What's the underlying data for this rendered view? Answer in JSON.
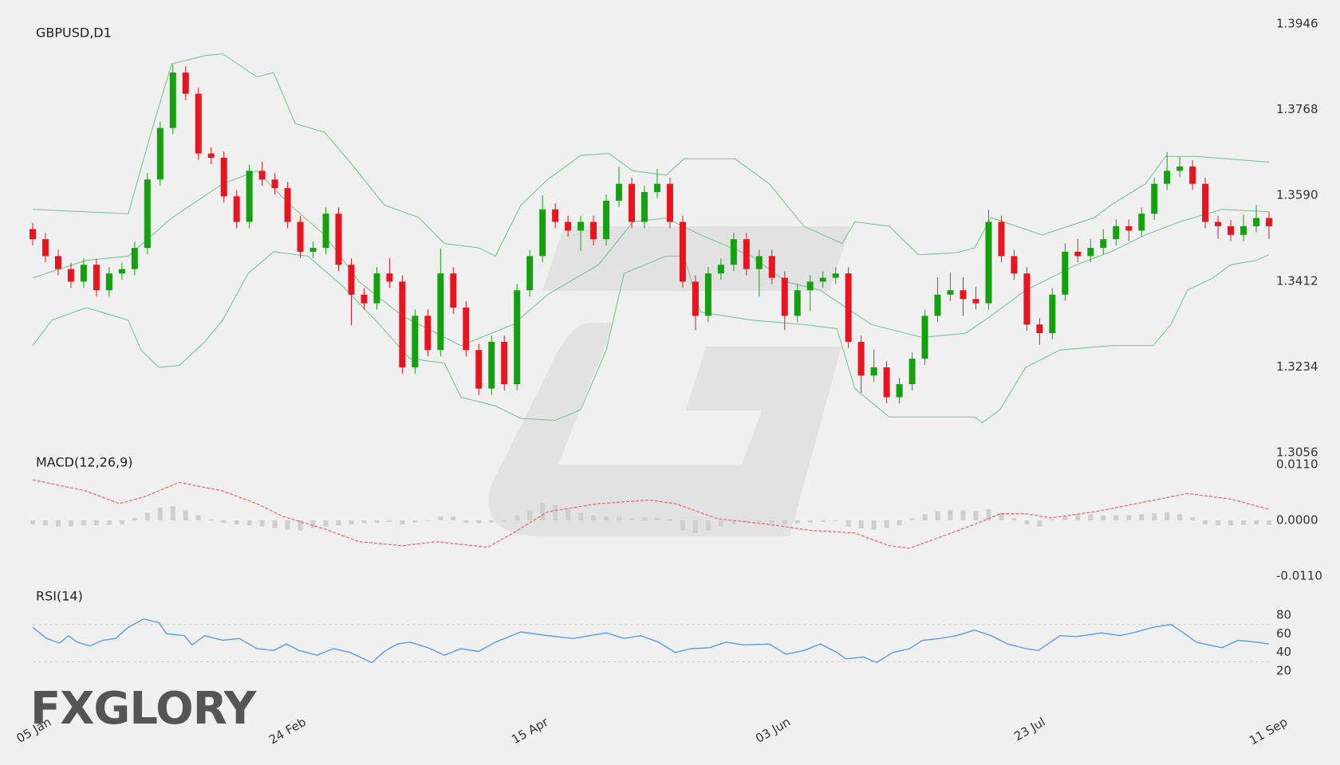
{
  "brand": "FXGLORY",
  "chart_data": [
    {
      "type": "candlestick",
      "title": "GBPUSD,D1",
      "up_color": "#13a10e",
      "down_color": "#e8141e",
      "xlim": [
        0,
        97
      ],
      "xticks": [
        {
          "value": 0,
          "label": "05 Jan"
        },
        {
          "value": 20,
          "label": "24 Feb"
        },
        {
          "value": 39,
          "label": "15 Apr"
        },
        {
          "value": 58,
          "label": "03 Jun"
        },
        {
          "value": 78,
          "label": "23 Jul"
        },
        {
          "value": 97,
          "label": "11 Sep"
        }
      ],
      "ylim": [
        1.3056,
        1.3946
      ],
      "yticks": [
        1.3946,
        1.3768,
        {
          "value": 1.359,
          "label": "1.3590"
        },
        1.3412,
        1.3234,
        1.3056
      ],
      "open": [
        1.352,
        1.3499,
        1.3464,
        1.3437,
        1.3411,
        1.3446,
        1.3393,
        1.3428,
        1.3437,
        1.3481,
        1.3623,
        1.373,
        1.3845,
        1.3801,
        1.3677,
        1.3668,
        1.3588,
        1.3535,
        1.3641,
        1.3623,
        1.3605,
        1.3535,
        1.3473,
        1.3481,
        1.3552,
        1.3446,
        1.3384,
        1.3366,
        1.3428,
        1.3411,
        1.3233,
        1.334,
        1.3269,
        1.3428,
        1.3357,
        1.3269,
        1.3189,
        1.3286,
        1.3198,
        1.3393,
        1.3464,
        1.3561,
        1.3535,
        1.3517,
        1.3535,
        1.3499,
        1.3579,
        1.3614,
        1.3535,
        1.3597,
        1.3614,
        1.3535,
        1.3411,
        1.334,
        1.3428,
        1.3446,
        1.3499,
        1.3437,
        1.3464,
        1.3419,
        1.334,
        1.3393,
        1.3411,
        1.3419,
        1.3428,
        1.3286,
        1.3216,
        1.3233,
        1.3171,
        1.3198,
        1.3251,
        1.334,
        1.3384,
        1.3393,
        1.3375,
        1.3366,
        1.3535,
        1.3464,
        1.3428,
        1.3322,
        1.3304,
        1.3384,
        1.3473,
        1.3464,
        1.3481,
        1.3499,
        1.3526,
        1.3517,
        1.3552,
        1.3614,
        1.3641,
        1.365,
        1.3614,
        1.3535,
        1.3526,
        1.3508,
        1.3526,
        1.3543
      ],
      "high": [
        1.3533,
        1.3512,
        1.3477,
        1.345,
        1.3459,
        1.3459,
        1.3441,
        1.345,
        1.3494,
        1.3636,
        1.3743,
        1.3862,
        1.3858,
        1.3814,
        1.369,
        1.3681,
        1.3601,
        1.3654,
        1.366,
        1.3636,
        1.3618,
        1.3548,
        1.3494,
        1.3565,
        1.3565,
        1.3459,
        1.3397,
        1.3441,
        1.346,
        1.3424,
        1.3353,
        1.3353,
        1.348,
        1.3441,
        1.337,
        1.3282,
        1.3299,
        1.3299,
        1.3406,
        1.3477,
        1.359,
        1.3574,
        1.3548,
        1.3548,
        1.3548,
        1.3592,
        1.365,
        1.3627,
        1.361,
        1.3645,
        1.3627,
        1.3548,
        1.3424,
        1.3441,
        1.3459,
        1.3512,
        1.3512,
        1.3477,
        1.3477,
        1.3432,
        1.3406,
        1.3424,
        1.3432,
        1.3441,
        1.3441,
        1.3299,
        1.327,
        1.3246,
        1.3211,
        1.3264,
        1.3353,
        1.342,
        1.343,
        1.342,
        1.34,
        1.356,
        1.3548,
        1.3477,
        1.3441,
        1.3335,
        1.3397,
        1.349,
        1.35,
        1.35,
        1.352,
        1.354,
        1.354,
        1.3565,
        1.3627,
        1.368,
        1.367,
        1.3663,
        1.3627,
        1.3548,
        1.3539,
        1.355,
        1.357,
        1.3556
      ],
      "low": [
        1.3486,
        1.3451,
        1.3424,
        1.3398,
        1.3398,
        1.338,
        1.338,
        1.3415,
        1.3424,
        1.3468,
        1.361,
        1.3717,
        1.3788,
        1.3664,
        1.3655,
        1.3575,
        1.3522,
        1.3522,
        1.361,
        1.3592,
        1.3522,
        1.346,
        1.346,
        1.3468,
        1.3433,
        1.332,
        1.3353,
        1.3353,
        1.3398,
        1.322,
        1.322,
        1.3256,
        1.3256,
        1.3344,
        1.3256,
        1.3176,
        1.3176,
        1.3185,
        1.3185,
        1.338,
        1.3451,
        1.3522,
        1.3504,
        1.3475,
        1.3486,
        1.3486,
        1.3566,
        1.3522,
        1.3522,
        1.3584,
        1.3522,
        1.3398,
        1.331,
        1.3327,
        1.3415,
        1.3433,
        1.3424,
        1.338,
        1.3406,
        1.331,
        1.3327,
        1.335,
        1.3398,
        1.3406,
        1.3273,
        1.318,
        1.3203,
        1.3158,
        1.3158,
        1.3185,
        1.3238,
        1.3327,
        1.3371,
        1.334,
        1.3353,
        1.3353,
        1.3451,
        1.3415,
        1.3309,
        1.328,
        1.3291,
        1.3371,
        1.3451,
        1.3451,
        1.3468,
        1.3486,
        1.3495,
        1.3504,
        1.3539,
        1.3601,
        1.3628,
        1.3601,
        1.3522,
        1.35,
        1.3495,
        1.3495,
        1.3513,
        1.35
      ],
      "close": [
        1.3499,
        1.3464,
        1.3437,
        1.3411,
        1.3446,
        1.3393,
        1.3428,
        1.3437,
        1.3481,
        1.3623,
        1.373,
        1.3845,
        1.3801,
        1.3677,
        1.3668,
        1.3588,
        1.3535,
        1.3641,
        1.3623,
        1.3605,
        1.3535,
        1.3473,
        1.3481,
        1.3552,
        1.3446,
        1.3384,
        1.3366,
        1.3428,
        1.3411,
        1.3233,
        1.334,
        1.3269,
        1.3428,
        1.3357,
        1.3269,
        1.3189,
        1.3286,
        1.3198,
        1.3393,
        1.3464,
        1.3561,
        1.3535,
        1.3517,
        1.3535,
        1.3499,
        1.3579,
        1.3614,
        1.3535,
        1.3597,
        1.3614,
        1.3535,
        1.3411,
        1.334,
        1.3428,
        1.3446,
        1.3499,
        1.3437,
        1.3464,
        1.3419,
        1.334,
        1.3393,
        1.3411,
        1.3419,
        1.3428,
        1.3286,
        1.3216,
        1.3233,
        1.3171,
        1.3198,
        1.3251,
        1.334,
        1.3384,
        1.3393,
        1.3375,
        1.3366,
        1.3535,
        1.3464,
        1.3428,
        1.3322,
        1.3304,
        1.3384,
        1.3473,
        1.3464,
        1.3481,
        1.3499,
        1.3526,
        1.3517,
        1.3552,
        1.3614,
        1.3641,
        1.365,
        1.3614,
        1.3535,
        1.3526,
        1.3508,
        1.3526,
        1.3543,
        1.3526
      ],
      "bands": [
        {
          "color": "#6cc58a",
          "x": [
            0,
            7.5,
            9.2,
            10.9,
            13.5,
            14.9,
            17.6,
            18.9,
            20.6,
            22.9,
            24.9,
            27.6,
            30.3,
            32.3,
            35.0,
            36.3,
            38.3,
            40.4,
            43.0,
            45.2,
            47.1,
            49.7,
            51.1,
            55.1,
            57.8,
            60.5,
            63.5,
            64.5,
            67.2,
            69.5,
            72.5,
            73.9,
            75.2,
            79.2,
            83.3,
            84.6,
            87.3,
            88.9,
            91.3,
            97
          ],
          "values": [
            1.3561,
            1.3552,
            1.3712,
            1.3863,
            1.388,
            1.3884,
            1.3836,
            1.3845,
            1.3739,
            1.3721,
            1.3659,
            1.357,
            1.3544,
            1.349,
            1.3481,
            1.3464,
            1.357,
            1.3623,
            1.3673,
            1.3677,
            1.3641,
            1.3632,
            1.3666,
            1.3666,
            1.3614,
            1.3526,
            1.349,
            1.3535,
            1.3526,
            1.3467,
            1.3471,
            1.3481,
            1.3544,
            1.3508,
            1.3544,
            1.357,
            1.3614,
            1.3671,
            1.3671,
            1.3659
          ]
        },
        {
          "color": "#6cc58a",
          "x": [
            0,
            4.2,
            7.5,
            10.9,
            14.9,
            17.6,
            20.2,
            22.9,
            25.6,
            29.0,
            33.6,
            37.7,
            40.4,
            44.4,
            47.1,
            49.7,
            52.4,
            56.4,
            59.1,
            61.8,
            65.8,
            69.8,
            73.2,
            75.2,
            77.9,
            81.9,
            84.6,
            87.3,
            90.0,
            93.3,
            97
          ],
          "values": [
            1.3419,
            1.3455,
            1.3464,
            1.3543,
            1.3614,
            1.3641,
            1.357,
            1.3508,
            1.3411,
            1.334,
            1.3278,
            1.3322,
            1.3384,
            1.3446,
            1.3535,
            1.3543,
            1.3508,
            1.3464,
            1.3411,
            1.3393,
            1.3322,
            1.3295,
            1.3304,
            1.334,
            1.3393,
            1.3446,
            1.3473,
            1.3508,
            1.3535,
            1.3561,
            1.3556
          ]
        },
        {
          "color": "#6cc58a",
          "x": [
            0,
            1.5,
            4.2,
            7.5,
            8.5,
            9.9,
            11.5,
            13.5,
            14.9,
            16.9,
            18.9,
            21.6,
            24.3,
            26.9,
            29.6,
            32.3,
            33.6,
            36.3,
            38.3,
            41.0,
            43.0,
            45.0,
            46.4,
            49.7,
            51.1,
            52.4,
            56.4,
            60.5,
            63.1,
            64.5,
            67.2,
            69.8,
            73.9,
            74.5,
            75.9,
            77.9,
            80.6,
            84.6,
            87.9,
            89.3,
            90.6,
            92.6,
            94.0,
            96.0,
            97
          ],
          "values": [
            1.3278,
            1.3331,
            1.3357,
            1.3331,
            1.3269,
            1.3233,
            1.3237,
            1.3286,
            1.3331,
            1.3428,
            1.3473,
            1.3464,
            1.3402,
            1.3331,
            1.3251,
            1.3242,
            1.3171,
            1.3153,
            1.3127,
            1.3123,
            1.3145,
            1.3269,
            1.3428,
            1.3464,
            1.3464,
            1.3348,
            1.3331,
            1.3322,
            1.3313,
            1.3189,
            1.313,
            1.313,
            1.313,
            1.3118,
            1.3145,
            1.3233,
            1.3269,
            1.3278,
            1.3278,
            1.3322,
            1.3393,
            1.3419,
            1.3446,
            1.3455,
            1.3467
          ]
        }
      ]
    },
    {
      "type": "macd",
      "title": "MACD(12,26,9)",
      "ylim": [
        -0.011,
        0.011
      ],
      "yticks": [
        {
          "value": 0.011,
          "label": "0.0110"
        },
        {
          "value": 0,
          "label": "0.0000"
        },
        {
          "value": -0.011,
          "label": "-0.0110"
        }
      ],
      "histogram": {
        "color": "#cfcfcf",
        "values": [
          -0.0008,
          -0.001,
          -0.0012,
          -0.0012,
          -0.001,
          -0.001,
          -0.0009,
          -0.0008,
          0.0005,
          0.0015,
          0.0025,
          0.0028,
          0.002,
          0.001,
          0.0002,
          -0.0005,
          -0.0008,
          -0.001,
          -0.0012,
          -0.0015,
          -0.0018,
          -0.002,
          -0.0015,
          -0.0012,
          -0.001,
          -0.0008,
          -0.0006,
          -0.0005,
          -0.0003,
          -0.0008,
          -0.0004,
          -0.0002,
          0.0008,
          0.0008,
          -0.0005,
          -0.0006,
          -0.0004,
          -0.0003,
          0.001,
          0.002,
          0.0035,
          0.003,
          0.0022,
          0.0015,
          0.001,
          0.0008,
          0.0008,
          0.0005,
          0.0006,
          0.0005,
          0.0002,
          -0.002,
          -0.0025,
          -0.002,
          -0.0012,
          -0.0008,
          -0.0004,
          -0.0003,
          -0.0006,
          -0.0008,
          -0.0006,
          -0.0004,
          -0.0003,
          -0.0002,
          -0.0012,
          -0.0016,
          -0.0018,
          -0.0015,
          -0.001,
          0.0004,
          0.0012,
          0.0018,
          0.002,
          0.002,
          0.0018,
          0.0022,
          0.0015,
          0.0005,
          -0.0008,
          -0.0012,
          0.0002,
          0.0008,
          0.0012,
          0.0012,
          0.001,
          0.001,
          0.001,
          0.0012,
          0.0014,
          0.0016,
          0.0012,
          0.0006,
          -0.0008,
          -0.001,
          -0.001,
          -0.0009,
          -0.0008,
          -0.0009
        ]
      },
      "signal": {
        "color": "#f26b6b",
        "x": [
          0,
          4.2,
          6.8,
          8.8,
          11.5,
          14.9,
          17.6,
          19.6,
          22.9,
          25.6,
          29.0,
          31.6,
          35.7,
          37.7,
          40.4,
          44.4,
          48.4,
          50.4,
          53.8,
          57.8,
          61.1,
          64.5,
          67.2,
          68.8,
          71.2,
          73.9,
          75.9,
          77.9,
          79.9,
          83.3,
          86.6,
          90.6,
          94.0,
          97
        ],
        "values": [
          0.008,
          0.0058,
          0.0033,
          0.0047,
          0.0075,
          0.0058,
          0.0033,
          0.0008,
          -0.0017,
          -0.0042,
          -0.005,
          -0.0042,
          -0.0053,
          -0.0025,
          0.0017,
          0.0033,
          0.004,
          0.0033,
          0.0003,
          -0.0008,
          -0.002,
          -0.0025,
          -0.005,
          -0.0055,
          -0.0033,
          -0.0008,
          0.0013,
          0.0013,
          0.0005,
          0.0017,
          0.0033,
          0.0053,
          0.0042,
          0.0022
        ]
      }
    },
    {
      "type": "line",
      "title": "RSI(14)",
      "color": "#5b9bea",
      "ylim": [
        20,
        80
      ],
      "yticks": [
        80,
        60,
        40,
        20
      ],
      "levels": [
        70,
        30
      ],
      "x": [
        0,
        1.1,
        2.1,
        2.8,
        3.5,
        4.5,
        5.5,
        6.5,
        7.5,
        8.7,
        9.9,
        10.5,
        11.9,
        12.5,
        13.5,
        14.9,
        16.2,
        17.6,
        18.9,
        19.9,
        20.9,
        22.3,
        23.6,
        24.9,
        26.6,
        27.6,
        28.6,
        29.6,
        31.0,
        32.3,
        33.6,
        35.0,
        36.3,
        38.3,
        40.4,
        42.4,
        43.7,
        45.0,
        46.4,
        47.7,
        49.1,
        50.4,
        51.7,
        53.1,
        54.4,
        55.8,
        57.8,
        59.1,
        60.5,
        61.8,
        63.1,
        63.8,
        65.2,
        66.2,
        67.5,
        68.8,
        69.8,
        71.2,
        72.5,
        73.9,
        75.2,
        76.5,
        77.9,
        78.9,
        80.6,
        81.9,
        83.9,
        85.3,
        86.6,
        87.9,
        89.3,
        90.3,
        91.3,
        93.3,
        94.6,
        96.0,
        97
      ],
      "values": [
        67,
        55,
        50,
        58,
        51,
        47,
        53,
        55,
        67,
        76,
        72,
        60,
        58,
        48,
        58,
        53,
        55,
        44,
        42,
        49,
        42,
        37,
        44,
        40,
        29,
        41,
        49,
        51,
        45,
        37,
        44,
        41,
        51,
        62,
        58,
        55,
        58,
        61,
        55,
        58,
        51,
        40,
        44,
        45,
        51,
        48,
        49,
        38,
        42,
        49,
        40,
        33,
        35,
        29,
        40,
        44,
        53,
        55,
        58,
        64,
        58,
        49,
        44,
        42,
        58,
        57,
        61,
        58,
        62,
        67,
        70,
        61,
        51,
        45,
        53,
        51,
        49
      ]
    }
  ]
}
